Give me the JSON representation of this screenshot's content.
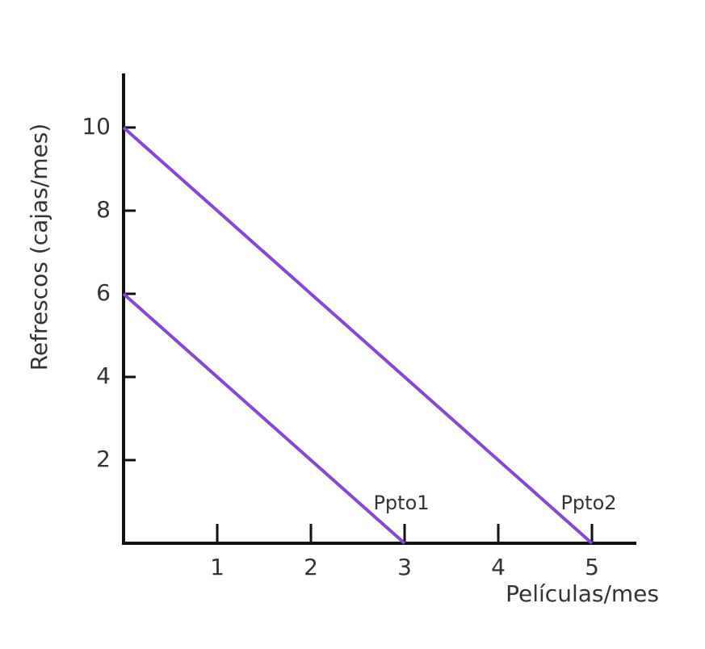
{
  "chart_data": {
    "type": "line",
    "x_label": "Películas/mes",
    "y_label": "Refrescos (cajas/mes)",
    "xlim": [
      0,
      5.5
    ],
    "ylim": [
      0,
      11.3
    ],
    "xticks": [
      1,
      2,
      3,
      4,
      5
    ],
    "yticks": [
      2,
      4,
      6,
      8,
      10
    ],
    "series": [
      {
        "name": "Ppto1",
        "color": "#8547d4",
        "x": [
          0,
          3
        ],
        "values": [
          6,
          0
        ]
      },
      {
        "name": "Ppto2",
        "color": "#8547d4",
        "x": [
          0,
          5
        ],
        "values": [
          10,
          0
        ]
      }
    ]
  }
}
